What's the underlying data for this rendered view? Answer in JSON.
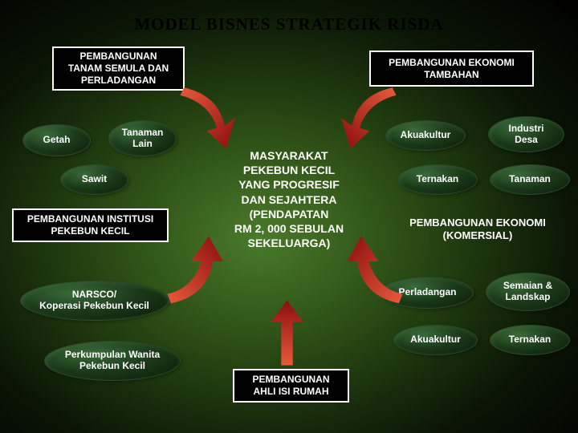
{
  "title": "MODEL  BISNES  STRATEGIK  RISDA",
  "boxes": {
    "top_left": "PEMBANGUNAN\nTANAM SEMULA DAN\nPERLADANGAN",
    "top_right": "PEMBANGUNAN EKONOMI\nTAMBAHAN",
    "inst_left": "PEMBANGUNAN INSTITUSI\nPEKEBUN KECIL",
    "bottom": "PEMBANGUNAN\nAHLI ISI RUMAH"
  },
  "ovals": {
    "getah": "Getah",
    "tanaman_lain": "Tanaman\nLain",
    "sawit": "Sawit",
    "narsco": "NARSCO/\nKoperasi Pekebun Kecil",
    "wanita": "Perkumpulan Wanita\nPekebun Kecil",
    "akuakultur": "Akuakultur",
    "industri_desa": "Industri\nDesa",
    "ternakan": "Ternakan",
    "tanaman": "Tanaman",
    "perladangan": "Perladangan",
    "semaian": "Semaian &\nLandskap",
    "akuakultur2": "Akuakultur",
    "ternakan2": "Ternakan"
  },
  "center": "MASYARAKAT\nPEKEBUN KECIL\nYANG PROGRESIF\nDAN SEJAHTERA\n(PENDAPATAN\nRM 2, 000 SEBULAN\nSEKELUARGA)",
  "ekonomi_komersial": "PEMBANGUNAN EKONOMI\n(KOMERSIAL)",
  "style": {
    "title_fontsize": 21,
    "box_fontsize": 12,
    "oval_fontsize": 12,
    "center_fontsize": 14,
    "colors": {
      "box_bg": "#000000",
      "box_border": "#ffffff",
      "text": "#ffffff",
      "arrow": "#c41e1e",
      "oval_grad_light": "#3a6a3a",
      "oval_grad_dark": "#0a1a08"
    },
    "arrows": [
      {
        "from": "top-left",
        "to": "center",
        "rot": 135
      },
      {
        "from": "top-right",
        "to": "center",
        "rot": -135
      },
      {
        "from": "left",
        "to": "center",
        "rot": 70
      },
      {
        "from": "right",
        "to": "center",
        "rot": -70
      },
      {
        "from": "bottom",
        "to": "center",
        "rot": 0
      }
    ]
  }
}
